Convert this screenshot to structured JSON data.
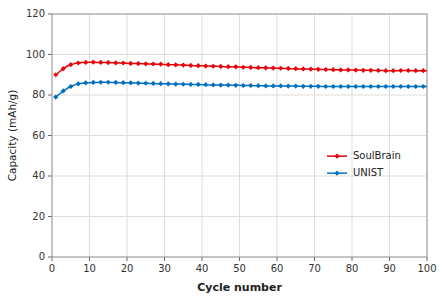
{
  "chart_data": {
    "type": "line",
    "xlabel": "Cycle number",
    "ylabel": "Capacity (mAh/g)",
    "x": [
      1,
      2,
      3,
      4,
      5,
      6,
      7,
      8,
      9,
      10,
      11,
      12,
      13,
      14,
      15,
      16,
      17,
      18,
      19,
      20,
      21,
      22,
      23,
      24,
      25,
      26,
      27,
      28,
      29,
      30,
      31,
      32,
      33,
      34,
      35,
      36,
      37,
      38,
      39,
      40,
      41,
      42,
      43,
      44,
      45,
      46,
      47,
      48,
      49,
      50,
      51,
      52,
      53,
      54,
      55,
      56,
      57,
      58,
      59,
      60,
      61,
      62,
      63,
      64,
      65,
      66,
      67,
      68,
      69,
      70,
      71,
      72,
      73,
      74,
      75,
      76,
      77,
      78,
      79,
      80,
      81,
      82,
      83,
      84,
      85,
      86,
      87,
      88,
      89,
      90,
      91,
      92,
      93,
      94,
      95,
      96,
      97,
      98,
      99,
      100
    ],
    "series": [
      {
        "name": "SoulBrain",
        "color": "#e8000a",
        "marker": "diamond",
        "values": [
          90.0,
          91.5,
          93.0,
          94.2,
          95.0,
          95.5,
          95.8,
          96.0,
          96.1,
          96.2,
          96.2,
          96.1,
          96.1,
          96.0,
          96.0,
          95.9,
          95.9,
          95.8,
          95.8,
          95.7,
          95.6,
          95.5,
          95.5,
          95.4,
          95.4,
          95.3,
          95.3,
          95.2,
          95.2,
          95.1,
          95.0,
          95.0,
          94.9,
          94.8,
          94.8,
          94.7,
          94.6,
          94.5,
          94.5,
          94.4,
          94.3,
          94.3,
          94.2,
          94.2,
          94.1,
          94.0,
          94.0,
          93.9,
          93.9,
          93.8,
          93.7,
          93.7,
          93.6,
          93.5,
          93.5,
          93.4,
          93.4,
          93.3,
          93.3,
          93.2,
          93.2,
          93.1,
          93.1,
          93.0,
          93.0,
          92.9,
          92.9,
          92.8,
          92.8,
          92.7,
          92.7,
          92.6,
          92.6,
          92.6,
          92.5,
          92.5,
          92.4,
          92.4,
          92.4,
          92.3,
          92.3,
          92.3,
          92.2,
          92.2,
          92.2,
          92.1,
          92.1,
          92.1,
          92.0,
          92.0,
          92.0,
          92.0,
          92.1,
          92.1,
          92.1,
          92.0,
          92.0,
          92.0,
          92.0,
          92.0
        ]
      },
      {
        "name": "UNIST",
        "color": "#0070c0",
        "marker": "diamond",
        "values": [
          79.0,
          80.5,
          82.0,
          83.2,
          84.2,
          85.0,
          85.5,
          85.8,
          86.0,
          86.1,
          86.2,
          86.2,
          86.3,
          86.3,
          86.3,
          86.2,
          86.2,
          86.1,
          86.1,
          86.0,
          86.0,
          85.9,
          85.9,
          85.8,
          85.8,
          85.7,
          85.7,
          85.6,
          85.6,
          85.5,
          85.5,
          85.4,
          85.4,
          85.4,
          85.3,
          85.3,
          85.2,
          85.2,
          85.2,
          85.1,
          85.1,
          85.0,
          85.0,
          85.0,
          84.9,
          84.9,
          84.9,
          84.8,
          84.8,
          84.8,
          84.7,
          84.7,
          84.7,
          84.6,
          84.6,
          84.6,
          84.5,
          84.5,
          84.5,
          84.5,
          84.5,
          84.4,
          84.4,
          84.4,
          84.4,
          84.3,
          84.3,
          84.3,
          84.3,
          84.3,
          84.3,
          84.2,
          84.2,
          84.2,
          84.2,
          84.2,
          84.2,
          84.2,
          84.2,
          84.2,
          84.2,
          84.2,
          84.2,
          84.2,
          84.2,
          84.2,
          84.2,
          84.2,
          84.2,
          84.2,
          84.2,
          84.2,
          84.2,
          84.2,
          84.2,
          84.2,
          84.2,
          84.2,
          84.2,
          84.2
        ]
      }
    ],
    "xlim": [
      0,
      100
    ],
    "ylim": [
      0,
      120
    ],
    "xticks": [
      0,
      10,
      20,
      30,
      40,
      50,
      60,
      70,
      80,
      90,
      100
    ],
    "yticks": [
      0,
      20,
      40,
      60,
      80,
      100,
      120
    ],
    "grid": true,
    "legend": "right"
  }
}
